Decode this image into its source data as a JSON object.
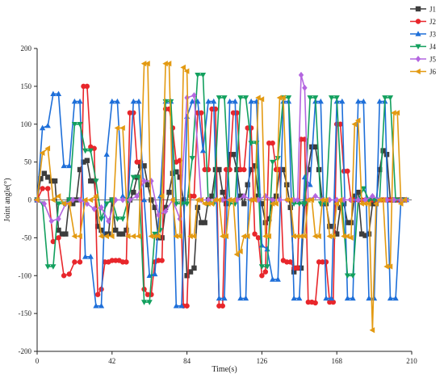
{
  "chart_data": {
    "type": "line",
    "xlabel": "Time(s)",
    "ylabel": "Joint angle(°)",
    "xlim": [
      0,
      210
    ],
    "ylim": [
      -200,
      200
    ],
    "xticks": [
      0,
      42,
      84,
      126,
      168,
      210
    ],
    "yticks": [
      -200,
      -150,
      -100,
      -50,
      0,
      50,
      100,
      150,
      200
    ],
    "xtick_labels": [
      "0",
      "42",
      "84",
      "126",
      "168",
      "210"
    ],
    "ytick_labels": [
      "-200",
      "-150",
      "-100",
      "-50",
      "0",
      "50",
      "100",
      "150",
      "200"
    ],
    "zero_line": true,
    "grid": false,
    "legend_position": "top-right",
    "series": [
      {
        "name": "J1",
        "color": "#3d3d3d",
        "marker": "square",
        "x": [
          0,
          2,
          4,
          6,
          8,
          10,
          12,
          14,
          16,
          18,
          20,
          22,
          24,
          26,
          28,
          30,
          32,
          34,
          36,
          38,
          40,
          42,
          44,
          46,
          48,
          50,
          52,
          54,
          56,
          58,
          60,
          62,
          64,
          66,
          68,
          70,
          72,
          74,
          76,
          78,
          80,
          82,
          84,
          86,
          88,
          90,
          92,
          94,
          96,
          98,
          100,
          102,
          104,
          106,
          108,
          110,
          112,
          114,
          116,
          118,
          120,
          122,
          124,
          126,
          128,
          130,
          132,
          134,
          136,
          138,
          140,
          142,
          144,
          146,
          148,
          150,
          152,
          154,
          156,
          158,
          160,
          162,
          164,
          166,
          168,
          170,
          172,
          174,
          176,
          178,
          180,
          182,
          184,
          186,
          188,
          190,
          192,
          194,
          196,
          198,
          200,
          202,
          204,
          206
        ],
        "y": [
          0,
          28,
          35,
          30,
          25,
          25,
          -40,
          -45,
          -45,
          0,
          -5,
          0,
          40,
          50,
          52,
          25,
          25,
          -35,
          -40,
          -45,
          -45,
          0,
          -40,
          -45,
          -45,
          -40,
          0,
          10,
          30,
          45,
          45,
          20,
          0,
          -10,
          -50,
          -50,
          -10,
          10,
          35,
          37,
          30,
          0,
          -100,
          -95,
          -90,
          -10,
          -30,
          -30,
          0,
          5,
          40,
          40,
          10,
          -5,
          60,
          60,
          40,
          5,
          -5,
          20,
          40,
          45,
          5,
          -5,
          -30,
          -25,
          0,
          5,
          40,
          40,
          20,
          -10,
          -95,
          -90,
          -90,
          -5,
          40,
          70,
          70,
          40,
          -5,
          -5,
          -35,
          -35,
          -45,
          -10,
          -5,
          -30,
          -30,
          5,
          10,
          -45,
          -47,
          -45,
          -5,
          -5,
          40,
          65,
          60,
          0,
          0,
          0,
          0,
          0
        ]
      },
      {
        "name": "J2",
        "color": "#e8262b",
        "marker": "circle",
        "x": [
          0,
          3,
          6,
          9,
          12,
          15,
          18,
          21,
          24,
          26,
          28,
          30,
          32,
          34,
          36,
          38,
          40,
          42,
          44,
          46,
          48,
          50,
          52,
          54,
          56,
          58,
          60,
          62,
          64,
          66,
          68,
          70,
          72,
          74,
          76,
          78,
          80,
          82,
          84,
          86,
          88,
          90,
          92,
          94,
          96,
          98,
          100,
          102,
          104,
          106,
          108,
          110,
          112,
          114,
          116,
          118,
          120,
          122,
          124,
          126,
          128,
          130,
          132,
          134,
          136,
          138,
          140,
          142,
          144,
          146,
          148,
          150,
          152,
          154,
          156,
          158,
          160,
          162,
          164,
          166,
          168,
          170,
          172,
          174,
          176,
          178,
          180,
          182,
          184,
          186,
          188,
          190,
          192,
          194,
          196,
          198,
          200,
          202,
          204,
          206
        ],
        "y": [
          0,
          15,
          15,
          -55,
          -50,
          -100,
          -98,
          -82,
          -82,
          150,
          150,
          70,
          68,
          -125,
          -118,
          -82,
          -82,
          -80,
          -80,
          -80,
          -82,
          -82,
          115,
          115,
          50,
          50,
          -118,
          -125,
          -125,
          -82,
          -80,
          -80,
          120,
          120,
          95,
          50,
          52,
          -140,
          -140,
          5,
          5,
          115,
          115,
          40,
          40,
          120,
          120,
          -140,
          -140,
          40,
          40,
          115,
          115,
          40,
          40,
          95,
          95,
          -45,
          -50,
          -100,
          -95,
          75,
          75,
          40,
          40,
          -80,
          -82,
          -82,
          -90,
          -90,
          80,
          80,
          -135,
          -135,
          -136,
          -82,
          -82,
          -82,
          -135,
          -135,
          100,
          100,
          38,
          38,
          0,
          0,
          0,
          0,
          0,
          0,
          0,
          0,
          0,
          0,
          0,
          0,
          0,
          0,
          0,
          0
        ]
      },
      {
        "name": "J3",
        "color": "#1e6fd9",
        "marker": "triangle",
        "x": [
          0,
          3,
          6,
          9,
          12,
          15,
          18,
          21,
          24,
          27,
          30,
          33,
          36,
          39,
          42,
          45,
          48,
          51,
          54,
          57,
          60,
          63,
          66,
          69,
          72,
          75,
          78,
          81,
          84,
          87,
          90,
          93,
          96,
          99,
          102,
          105,
          108,
          111,
          114,
          117,
          120,
          123,
          126,
          129,
          132,
          135,
          138,
          141,
          144,
          147,
          150,
          153,
          156,
          159,
          162,
          165,
          168,
          171,
          174,
          177,
          180,
          183,
          186,
          189,
          192,
          195,
          198,
          201,
          204,
          207
        ],
        "y": [
          0,
          95,
          98,
          140,
          140,
          45,
          45,
          130,
          130,
          -75,
          -75,
          -140,
          -140,
          60,
          130,
          130,
          5,
          0,
          130,
          130,
          0,
          -100,
          -98,
          5,
          130,
          130,
          -140,
          -140,
          110,
          130,
          130,
          65,
          130,
          130,
          -130,
          -130,
          130,
          130,
          -130,
          -130,
          130,
          130,
          -60,
          -65,
          -105,
          -105,
          130,
          130,
          -130,
          -130,
          30,
          20,
          130,
          130,
          -130,
          -130,
          130,
          130,
          -130,
          -130,
          130,
          130,
          -130,
          -130,
          130,
          130,
          -130,
          -130,
          0,
          0
        ]
      },
      {
        "name": "J4",
        "color": "#13a05e",
        "marker": "triangle-down",
        "x": [
          0,
          3,
          6,
          9,
          12,
          15,
          18,
          21,
          24,
          27,
          30,
          33,
          36,
          39,
          42,
          45,
          48,
          51,
          54,
          57,
          60,
          63,
          66,
          69,
          72,
          75,
          78,
          81,
          84,
          87,
          90,
          93,
          96,
          99,
          102,
          105,
          108,
          111,
          114,
          117,
          120,
          123,
          126,
          129,
          132,
          135,
          138,
          141,
          144,
          147,
          150,
          153,
          156,
          159,
          162,
          165,
          168,
          171,
          174,
          177,
          180,
          183,
          186,
          189,
          192,
          195,
          198,
          201,
          204,
          207
        ],
        "y": [
          0,
          -5,
          -88,
          -88,
          -5,
          -5,
          0,
          100,
          100,
          65,
          65,
          25,
          -25,
          -5,
          0,
          -25,
          -25,
          0,
          30,
          30,
          -135,
          -135,
          -45,
          -40,
          130,
          130,
          -5,
          -5,
          -5,
          55,
          165,
          165,
          -5,
          -5,
          135,
          135,
          -5,
          -5,
          135,
          135,
          75,
          75,
          -88,
          -88,
          50,
          55,
          135,
          135,
          -5,
          -5,
          -5,
          135,
          135,
          -5,
          -5,
          135,
          135,
          -5,
          -100,
          -100,
          0,
          15,
          0,
          0,
          0,
          135,
          135,
          0,
          0,
          0
        ]
      },
      {
        "name": "J5",
        "color": "#b466e0",
        "marker": "diamond",
        "x": [
          0,
          4,
          8,
          12,
          16,
          20,
          24,
          28,
          32,
          36,
          40,
          44,
          48,
          52,
          56,
          60,
          64,
          68,
          72,
          76,
          80,
          84,
          88,
          92,
          96,
          100,
          104,
          108,
          112,
          116,
          120,
          124,
          128,
          132,
          136,
          140,
          144,
          146,
          148,
          150,
          152,
          156,
          160,
          164,
          168,
          172,
          176,
          180,
          184,
          188,
          192,
          196,
          200,
          204,
          207
        ],
        "y": [
          0,
          -5,
          -28,
          -25,
          -5,
          0,
          0,
          -5,
          -12,
          -10,
          -28,
          0,
          0,
          0,
          5,
          25,
          25,
          -20,
          -15,
          0,
          -25,
          135,
          138,
          0,
          0,
          0,
          0,
          0,
          0,
          5,
          0,
          0,
          5,
          0,
          0,
          0,
          0,
          0,
          165,
          148,
          0,
          5,
          0,
          0,
          0,
          0,
          0,
          0,
          0,
          5,
          0,
          0,
          0,
          0,
          0
        ]
      },
      {
        "name": "J6",
        "color": "#e39a12",
        "marker": "triangle-left",
        "x": [
          0,
          3,
          6,
          9,
          12,
          15,
          18,
          21,
          24,
          27,
          30,
          33,
          36,
          39,
          42,
          45,
          48,
          51,
          54,
          57,
          60,
          62,
          64,
          66,
          68,
          70,
          72,
          74,
          76,
          78,
          80,
          82,
          84,
          86,
          88,
          90,
          92,
          94,
          96,
          98,
          100,
          102,
          104,
          106,
          108,
          110,
          112,
          114,
          116,
          118,
          120,
          122,
          124,
          126,
          128,
          130,
          132,
          134,
          136,
          138,
          140,
          142,
          144,
          146,
          148,
          150,
          152,
          154,
          156,
          158,
          160,
          162,
          164,
          166,
          168,
          170,
          172,
          174,
          176,
          178,
          180,
          182,
          184,
          186,
          188,
          190,
          192,
          194,
          196,
          198,
          200,
          202,
          204,
          206
        ],
        "y": [
          0,
          62,
          68,
          0,
          5,
          -5,
          -5,
          -48,
          -48,
          0,
          0,
          5,
          -48,
          -48,
          -48,
          95,
          95,
          -48,
          -48,
          -48,
          180,
          180,
          -48,
          -48,
          -48,
          5,
          180,
          180,
          0,
          -48,
          -48,
          175,
          170,
          -48,
          -48,
          0,
          0,
          -5,
          -5,
          -5,
          0,
          0,
          -48,
          -48,
          0,
          0,
          -72,
          -68,
          -48,
          -48,
          0,
          0,
          135,
          133,
          -48,
          -48,
          -5,
          -5,
          135,
          135,
          0,
          0,
          -48,
          -48,
          -48,
          -48,
          0,
          0,
          -48,
          -48,
          0,
          0,
          -48,
          -48,
          -5,
          0,
          -48,
          -48,
          -50,
          100,
          105,
          -5,
          -5,
          -5,
          -172,
          -5,
          0,
          0,
          -88,
          -88,
          115,
          115,
          -5,
          0
        ]
      }
    ]
  },
  "colors": {
    "axis": "#222222"
  }
}
